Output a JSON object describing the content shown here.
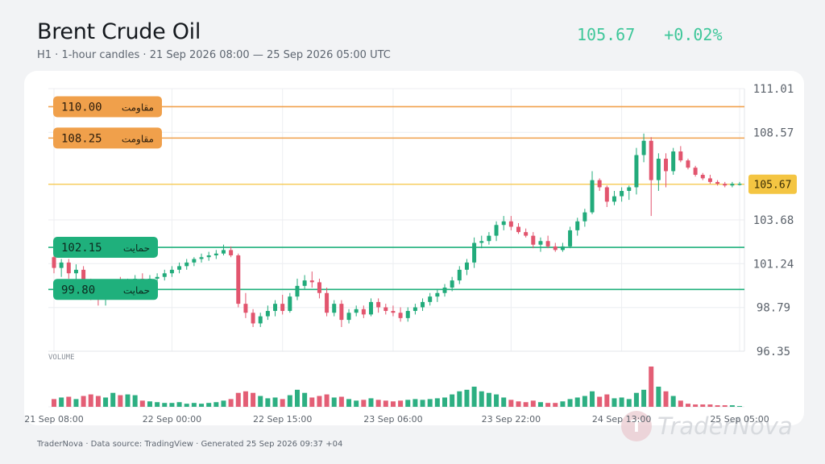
{
  "header": {
    "title": "Brent Crude Oil",
    "subtitle": "H1 · 1-hour candles · 21 Sep 2026 08:00 — 25 Sep 2026 05:00 UTC",
    "price": "105.67",
    "change": "+0.02%"
  },
  "colors": {
    "up": "#22ab7b",
    "down": "#e2556e",
    "resistance": "#f0a04b",
    "support": "#1fb07c",
    "current": "#f4c542",
    "price_text": "#3fc79a"
  },
  "volume_label": "VOLUME",
  "footer": "TraderNova · Data source: TradingView · Generated 25 Sep 2026 09:37 +04",
  "watermark": "TraderNova",
  "chart_data": {
    "type": "candlestick",
    "y_axis": {
      "min": 96.35,
      "max": 111.01,
      "ticks": [
        "111.01",
        "108.57",
        "103.68",
        "101.24",
        "98.79",
        "96.35"
      ]
    },
    "x_axis": {
      "ticks": [
        {
          "i": 0,
          "label": "21 Sep 08:00"
        },
        {
          "i": 16,
          "label": "22 Sep 00:00"
        },
        {
          "i": 31,
          "label": "22 Sep 15:00"
        },
        {
          "i": 46,
          "label": "23 Sep 06:00"
        },
        {
          "i": 62,
          "label": "23 Sep 22:00"
        },
        {
          "i": 77,
          "label": "24 Sep 13:00"
        },
        {
          "i": 93,
          "label": "25 Sep 05:00"
        }
      ]
    },
    "levels": [
      {
        "kind": "resistance",
        "value": 110.0,
        "label_value": "110.00",
        "label_word": "مقاومت"
      },
      {
        "kind": "resistance",
        "value": 108.25,
        "label_value": "108.25",
        "label_word": "مقاومت"
      },
      {
        "kind": "support",
        "value": 102.15,
        "label_value": "102.15",
        "label_word": "حمایت"
      },
      {
        "kind": "support",
        "value": 99.8,
        "label_value": "99.80",
        "label_word": "حمایت"
      }
    ],
    "current_price": {
      "value": 105.67,
      "label": "105.67"
    },
    "candles": [
      {
        "o": 101.6,
        "h": 101.9,
        "l": 100.7,
        "c": 101.0,
        "v": 10
      },
      {
        "o": 101.0,
        "h": 101.5,
        "l": 100.5,
        "c": 101.3,
        "v": 12
      },
      {
        "o": 101.3,
        "h": 101.5,
        "l": 100.4,
        "c": 100.7,
        "v": 13
      },
      {
        "o": 100.7,
        "h": 101.2,
        "l": 100.2,
        "c": 100.9,
        "v": 10
      },
      {
        "o": 100.9,
        "h": 101.1,
        "l": 99.8,
        "c": 100.0,
        "v": 14
      },
      {
        "o": 100.0,
        "h": 100.4,
        "l": 99.2,
        "c": 99.6,
        "v": 16
      },
      {
        "o": 99.6,
        "h": 100.0,
        "l": 98.9,
        "c": 99.3,
        "v": 14
      },
      {
        "o": 99.3,
        "h": 99.9,
        "l": 98.9,
        "c": 99.7,
        "v": 12
      },
      {
        "o": 99.7,
        "h": 100.3,
        "l": 99.4,
        "c": 100.1,
        "v": 18
      },
      {
        "o": 100.1,
        "h": 100.5,
        "l": 99.7,
        "c": 99.9,
        "v": 15
      },
      {
        "o": 99.9,
        "h": 100.4,
        "l": 99.6,
        "c": 100.2,
        "v": 16
      },
      {
        "o": 100.2,
        "h": 100.6,
        "l": 99.9,
        "c": 100.4,
        "v": 15
      },
      {
        "o": 100.4,
        "h": 100.7,
        "l": 100.1,
        "c": 100.3,
        "v": 8
      },
      {
        "o": 100.3,
        "h": 100.6,
        "l": 100.1,
        "c": 100.4,
        "v": 7
      },
      {
        "o": 100.4,
        "h": 100.7,
        "l": 100.2,
        "c": 100.5,
        "v": 6
      },
      {
        "o": 100.5,
        "h": 100.9,
        "l": 100.3,
        "c": 100.7,
        "v": 5
      },
      {
        "o": 100.7,
        "h": 101.1,
        "l": 100.5,
        "c": 100.9,
        "v": 5
      },
      {
        "o": 100.9,
        "h": 101.3,
        "l": 100.7,
        "c": 101.1,
        "v": 6
      },
      {
        "o": 101.1,
        "h": 101.5,
        "l": 100.9,
        "c": 101.3,
        "v": 4
      },
      {
        "o": 101.3,
        "h": 101.6,
        "l": 101.1,
        "c": 101.5,
        "v": 5
      },
      {
        "o": 101.5,
        "h": 101.8,
        "l": 101.3,
        "c": 101.6,
        "v": 4
      },
      {
        "o": 101.6,
        "h": 101.9,
        "l": 101.4,
        "c": 101.7,
        "v": 5
      },
      {
        "o": 101.7,
        "h": 102.0,
        "l": 101.5,
        "c": 101.8,
        "v": 6
      },
      {
        "o": 101.8,
        "h": 102.3,
        "l": 101.7,
        "c": 102.0,
        "v": 8
      },
      {
        "o": 102.0,
        "h": 102.2,
        "l": 101.6,
        "c": 101.7,
        "v": 10
      },
      {
        "o": 101.7,
        "h": 101.8,
        "l": 98.8,
        "c": 99.0,
        "v": 18
      },
      {
        "o": 99.0,
        "h": 99.6,
        "l": 98.2,
        "c": 98.5,
        "v": 20
      },
      {
        "o": 98.5,
        "h": 98.7,
        "l": 97.7,
        "c": 97.9,
        "v": 18
      },
      {
        "o": 97.9,
        "h": 98.5,
        "l": 97.7,
        "c": 98.3,
        "v": 14
      },
      {
        "o": 98.3,
        "h": 98.9,
        "l": 98.1,
        "c": 98.6,
        "v": 11
      },
      {
        "o": 98.6,
        "h": 99.2,
        "l": 98.3,
        "c": 99.0,
        "v": 12
      },
      {
        "o": 99.0,
        "h": 99.5,
        "l": 98.4,
        "c": 98.6,
        "v": 10
      },
      {
        "o": 98.6,
        "h": 99.6,
        "l": 98.5,
        "c": 99.4,
        "v": 15
      },
      {
        "o": 99.4,
        "h": 100.4,
        "l": 99.2,
        "c": 100.0,
        "v": 22
      },
      {
        "o": 100.0,
        "h": 100.6,
        "l": 99.8,
        "c": 100.3,
        "v": 18
      },
      {
        "o": 100.3,
        "h": 100.8,
        "l": 99.9,
        "c": 100.2,
        "v": 12
      },
      {
        "o": 100.2,
        "h": 100.4,
        "l": 99.3,
        "c": 99.6,
        "v": 14
      },
      {
        "o": 99.6,
        "h": 99.9,
        "l": 98.3,
        "c": 98.5,
        "v": 16
      },
      {
        "o": 98.5,
        "h": 99.2,
        "l": 98.3,
        "c": 99.0,
        "v": 12
      },
      {
        "o": 99.0,
        "h": 99.2,
        "l": 97.7,
        "c": 98.1,
        "v": 13
      },
      {
        "o": 98.1,
        "h": 98.7,
        "l": 97.9,
        "c": 98.5,
        "v": 10
      },
      {
        "o": 98.5,
        "h": 98.9,
        "l": 98.3,
        "c": 98.7,
        "v": 8
      },
      {
        "o": 98.7,
        "h": 98.9,
        "l": 98.2,
        "c": 98.4,
        "v": 9
      },
      {
        "o": 98.4,
        "h": 99.3,
        "l": 98.3,
        "c": 99.1,
        "v": 11
      },
      {
        "o": 99.1,
        "h": 99.3,
        "l": 98.5,
        "c": 98.8,
        "v": 9
      },
      {
        "o": 98.8,
        "h": 99.0,
        "l": 98.4,
        "c": 98.6,
        "v": 8
      },
      {
        "o": 98.6,
        "h": 98.9,
        "l": 98.3,
        "c": 98.5,
        "v": 7
      },
      {
        "o": 98.5,
        "h": 98.8,
        "l": 98.0,
        "c": 98.2,
        "v": 8
      },
      {
        "o": 98.2,
        "h": 98.8,
        "l": 98.0,
        "c": 98.6,
        "v": 9
      },
      {
        "o": 98.6,
        "h": 99.0,
        "l": 98.4,
        "c": 98.8,
        "v": 10
      },
      {
        "o": 98.8,
        "h": 99.3,
        "l": 98.6,
        "c": 99.1,
        "v": 9
      },
      {
        "o": 99.1,
        "h": 99.6,
        "l": 98.9,
        "c": 99.4,
        "v": 10
      },
      {
        "o": 99.4,
        "h": 99.8,
        "l": 99.1,
        "c": 99.6,
        "v": 11
      },
      {
        "o": 99.6,
        "h": 100.1,
        "l": 99.4,
        "c": 99.9,
        "v": 12
      },
      {
        "o": 99.9,
        "h": 100.5,
        "l": 99.7,
        "c": 100.3,
        "v": 16
      },
      {
        "o": 100.3,
        "h": 101.1,
        "l": 100.1,
        "c": 100.9,
        "v": 20
      },
      {
        "o": 100.9,
        "h": 101.5,
        "l": 100.6,
        "c": 101.3,
        "v": 22
      },
      {
        "o": 101.3,
        "h": 102.7,
        "l": 101.0,
        "c": 102.4,
        "v": 26
      },
      {
        "o": 102.4,
        "h": 102.8,
        "l": 102.1,
        "c": 102.5,
        "v": 20
      },
      {
        "o": 102.5,
        "h": 103.0,
        "l": 102.3,
        "c": 102.8,
        "v": 18
      },
      {
        "o": 102.8,
        "h": 103.6,
        "l": 102.5,
        "c": 103.4,
        "v": 16
      },
      {
        "o": 103.4,
        "h": 103.9,
        "l": 103.1,
        "c": 103.6,
        "v": 12
      },
      {
        "o": 103.6,
        "h": 103.9,
        "l": 103.1,
        "c": 103.3,
        "v": 9
      },
      {
        "o": 103.3,
        "h": 103.5,
        "l": 102.9,
        "c": 103.0,
        "v": 7
      },
      {
        "o": 103.0,
        "h": 103.2,
        "l": 102.7,
        "c": 102.8,
        "v": 6
      },
      {
        "o": 102.8,
        "h": 103.0,
        "l": 102.1,
        "c": 102.3,
        "v": 8
      },
      {
        "o": 102.3,
        "h": 102.7,
        "l": 101.9,
        "c": 102.5,
        "v": 6
      },
      {
        "o": 102.5,
        "h": 102.8,
        "l": 102.1,
        "c": 102.2,
        "v": 5
      },
      {
        "o": 102.2,
        "h": 102.4,
        "l": 101.9,
        "c": 102.0,
        "v": 5
      },
      {
        "o": 102.0,
        "h": 102.4,
        "l": 101.9,
        "c": 102.2,
        "v": 7
      },
      {
        "o": 102.2,
        "h": 103.3,
        "l": 102.1,
        "c": 103.1,
        "v": 10
      },
      {
        "o": 103.1,
        "h": 103.8,
        "l": 102.8,
        "c": 103.6,
        "v": 12
      },
      {
        "o": 103.6,
        "h": 104.3,
        "l": 103.3,
        "c": 104.1,
        "v": 14
      },
      {
        "o": 104.1,
        "h": 106.4,
        "l": 104.0,
        "c": 105.9,
        "v": 20
      },
      {
        "o": 105.9,
        "h": 106.0,
        "l": 105.3,
        "c": 105.5,
        "v": 13
      },
      {
        "o": 105.5,
        "h": 105.6,
        "l": 104.4,
        "c": 104.7,
        "v": 16
      },
      {
        "o": 104.7,
        "h": 105.3,
        "l": 104.5,
        "c": 105.0,
        "v": 11
      },
      {
        "o": 105.0,
        "h": 105.5,
        "l": 104.7,
        "c": 105.3,
        "v": 12
      },
      {
        "o": 105.3,
        "h": 105.6,
        "l": 104.8,
        "c": 105.5,
        "v": 10
      },
      {
        "o": 105.5,
        "h": 107.7,
        "l": 105.1,
        "c": 107.3,
        "v": 18
      },
      {
        "o": 107.3,
        "h": 108.5,
        "l": 106.9,
        "c": 108.1,
        "v": 22
      },
      {
        "o": 108.1,
        "h": 108.3,
        "l": 103.9,
        "c": 105.9,
        "v": 52
      },
      {
        "o": 105.9,
        "h": 107.4,
        "l": 105.3,
        "c": 107.1,
        "v": 26
      },
      {
        "o": 107.1,
        "h": 107.4,
        "l": 105.5,
        "c": 106.4,
        "v": 20
      },
      {
        "o": 106.4,
        "h": 107.7,
        "l": 106.2,
        "c": 107.5,
        "v": 14
      },
      {
        "o": 107.5,
        "h": 107.8,
        "l": 106.9,
        "c": 107.0,
        "v": 8
      },
      {
        "o": 107.0,
        "h": 107.1,
        "l": 106.5,
        "c": 106.6,
        "v": 4
      },
      {
        "o": 106.6,
        "h": 106.7,
        "l": 106.1,
        "c": 106.2,
        "v": 3
      },
      {
        "o": 106.2,
        "h": 106.3,
        "l": 105.9,
        "c": 106.0,
        "v": 3
      },
      {
        "o": 106.0,
        "h": 106.2,
        "l": 105.7,
        "c": 105.8,
        "v": 3
      },
      {
        "o": 105.8,
        "h": 105.9,
        "l": 105.6,
        "c": 105.7,
        "v": 2
      },
      {
        "o": 105.7,
        "h": 105.8,
        "l": 105.5,
        "c": 105.6,
        "v": 2
      },
      {
        "o": 105.6,
        "h": 105.8,
        "l": 105.5,
        "c": 105.7,
        "v": 2
      },
      {
        "o": 105.7,
        "h": 105.8,
        "l": 105.6,
        "c": 105.7,
        "v": 1
      }
    ]
  }
}
